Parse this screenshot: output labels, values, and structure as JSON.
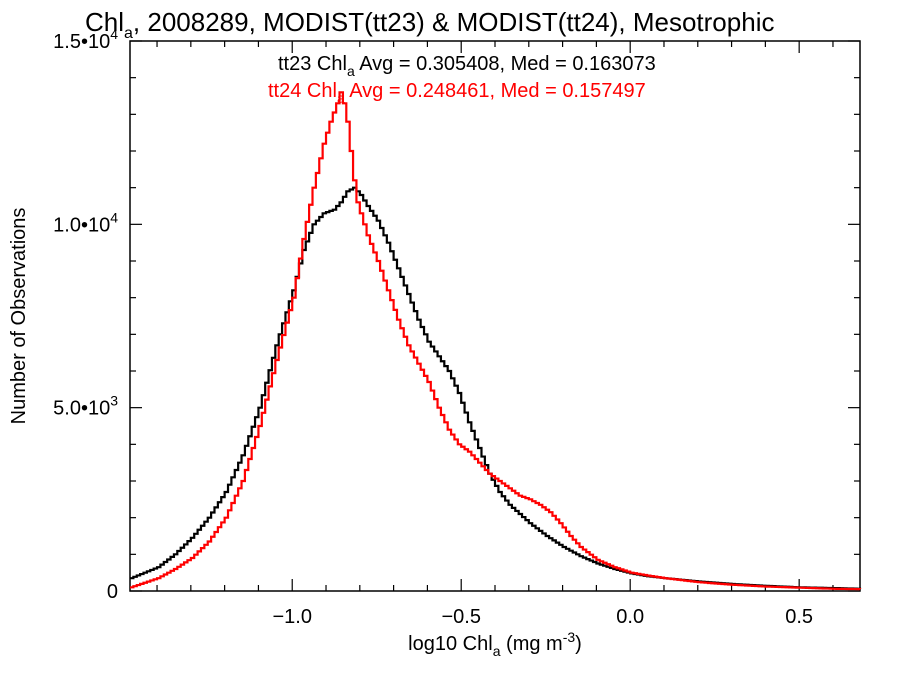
{
  "chart_data": {
    "type": "line",
    "title": {
      "prefix": "Chl",
      "sub": "a",
      "rest": ", 2008289, MODIST(tt23) & MODIST(tt24), Mesotrophic"
    },
    "xlabel": {
      "prefix": "log10 Chl",
      "sub": "a",
      "rest": " (mg m",
      "sup": "-3",
      "end": ")"
    },
    "ylabel": "Number of Observations",
    "xlim": [
      -1.48,
      0.68
    ],
    "ylim": [
      0,
      15000
    ],
    "x_ticks": [
      {
        "value": -1.0,
        "label": "−1.0"
      },
      {
        "value": -0.5,
        "label": "−0.5"
      },
      {
        "value": 0.0,
        "label": "0.0"
      },
      {
        "value": 0.5,
        "label": "0.5"
      }
    ],
    "y_ticks": [
      {
        "value": 0,
        "mantissa": "0",
        "exp": ""
      },
      {
        "value": 5000,
        "mantissa": "5.0•10",
        "exp": "3"
      },
      {
        "value": 10000,
        "mantissa": "1.0•10",
        "exp": "4"
      },
      {
        "value": 15000,
        "mantissa": "1.5•10",
        "exp": "4"
      }
    ],
    "grid": false,
    "legend_placement": "top-center",
    "stats": [
      {
        "series": "tt23",
        "color": "#000000",
        "prefix": "tt23 Chl",
        "sub": "a",
        "rest": " Avg = 0.305408, Med = 0.163073"
      },
      {
        "series": "tt24",
        "color": "#ff0000",
        "prefix": "tt24 Chl",
        "sub": "a",
        "rest": " Avg = 0.248461, Med = 0.157497"
      }
    ],
    "series": [
      {
        "name": "tt23",
        "color": "#000000",
        "x": [
          -1.48,
          -1.4,
          -1.35,
          -1.3,
          -1.25,
          -1.2,
          -1.15,
          -1.1,
          -1.05,
          -1.0,
          -0.97,
          -0.94,
          -0.91,
          -0.88,
          -0.86,
          -0.84,
          -0.82,
          -0.8,
          -0.78,
          -0.75,
          -0.72,
          -0.69,
          -0.66,
          -0.63,
          -0.6,
          -0.57,
          -0.54,
          -0.51,
          -0.48,
          -0.45,
          -0.42,
          -0.39,
          -0.36,
          -0.33,
          -0.3,
          -0.25,
          -0.2,
          -0.15,
          -0.1,
          -0.05,
          0.0,
          0.05,
          0.1,
          0.2,
          0.3,
          0.4,
          0.5,
          0.6,
          0.68
        ],
        "y": [
          350,
          650,
          1000,
          1450,
          2000,
          2700,
          3700,
          5000,
          6700,
          8200,
          9300,
          10000,
          10300,
          10400,
          10600,
          10900,
          11000,
          10800,
          10500,
          10100,
          9500,
          8800,
          8100,
          7400,
          6800,
          6400,
          6000,
          5400,
          4600,
          3900,
          3200,
          2700,
          2350,
          2100,
          1850,
          1500,
          1200,
          950,
          750,
          600,
          480,
          400,
          350,
          260,
          190,
          140,
          100,
          80,
          60
        ]
      },
      {
        "name": "tt24",
        "color": "#ff0000",
        "x": [
          -1.48,
          -1.4,
          -1.35,
          -1.3,
          -1.25,
          -1.2,
          -1.15,
          -1.1,
          -1.05,
          -1.0,
          -0.97,
          -0.94,
          -0.91,
          -0.89,
          -0.87,
          -0.86,
          -0.85,
          -0.84,
          -0.83,
          -0.82,
          -0.81,
          -0.8,
          -0.78,
          -0.75,
          -0.72,
          -0.69,
          -0.66,
          -0.63,
          -0.6,
          -0.57,
          -0.54,
          -0.51,
          -0.48,
          -0.45,
          -0.42,
          -0.39,
          -0.36,
          -0.33,
          -0.3,
          -0.27,
          -0.24,
          -0.21,
          -0.18,
          -0.15,
          -0.1,
          -0.05,
          0.0,
          0.05,
          0.1,
          0.2,
          0.3,
          0.4,
          0.5,
          0.6,
          0.68
        ],
        "y": [
          100,
          350,
          600,
          900,
          1350,
          2000,
          3000,
          4500,
          6300,
          8000,
          9600,
          11000,
          12200,
          12800,
          13300,
          13600,
          13300,
          12800,
          12000,
          11200,
          10600,
          10300,
          9700,
          9000,
          8200,
          7400,
          6700,
          6200,
          5700,
          5000,
          4400,
          4000,
          3800,
          3500,
          3200,
          3000,
          2800,
          2600,
          2500,
          2350,
          2150,
          1850,
          1500,
          1200,
          850,
          650,
          500,
          420,
          350,
          240,
          170,
          120,
          90,
          60,
          50
        ]
      }
    ]
  }
}
